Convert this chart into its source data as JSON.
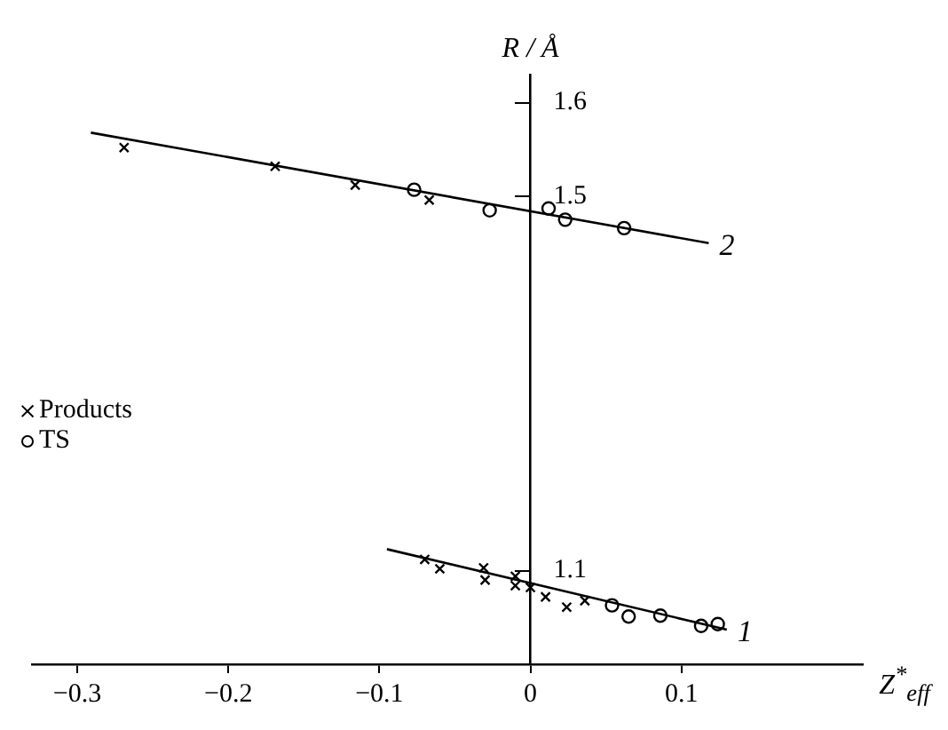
{
  "chart_data": {
    "type": "scatter",
    "ylabel": "R / Å",
    "xlabel": "Z$^{*}$$_{eff}$",
    "xlim": [
      -0.33,
      0.22
    ],
    "ylim": [
      1.0,
      1.63
    ],
    "yticks": [
      1.1,
      1.5,
      1.6
    ],
    "xticks": [
      -0.3,
      -0.2,
      -0.1,
      0,
      0.1
    ],
    "grid": false,
    "legend": "left",
    "series": [
      {
        "name": "Products",
        "marker": "cross",
        "color": "#000000",
        "x": [
          -0.269,
          -0.169,
          -0.116,
          -0.067,
          -0.07,
          -0.06,
          -0.031,
          -0.03,
          -0.01,
          -0.01,
          0.0,
          0.01,
          0.024,
          0.036
        ],
        "values": [
          1.552,
          1.532,
          1.512,
          1.496,
          1.112,
          1.102,
          1.103,
          1.09,
          1.094,
          1.084,
          1.082,
          1.072,
          1.061,
          1.068
        ]
      },
      {
        "name": "TS",
        "marker": "circle",
        "color": "#000000",
        "x": [
          -0.077,
          -0.027,
          0.012,
          0.023,
          0.062,
          0.054,
          0.065,
          0.086,
          0.113,
          0.124
        ],
        "values": [
          1.507,
          1.485,
          1.487,
          1.475,
          1.466,
          1.063,
          1.051,
          1.052,
          1.041,
          1.043
        ]
      },
      {
        "type": "line",
        "color": "#000000",
        "x": [
          -0.291,
          0.118
        ],
        "values": [
          1.568,
          1.45
        ]
      },
      {
        "type": "line",
        "color": "#000000",
        "x": [
          -0.095,
          0.13
        ],
        "values": [
          1.123,
          1.037
        ]
      }
    ],
    "annotations": [
      {
        "text": "2",
        "x": 0.118,
        "y": 1.45
      },
      {
        "text": "1",
        "x": 0.13,
        "y": 1.037
      }
    ]
  }
}
